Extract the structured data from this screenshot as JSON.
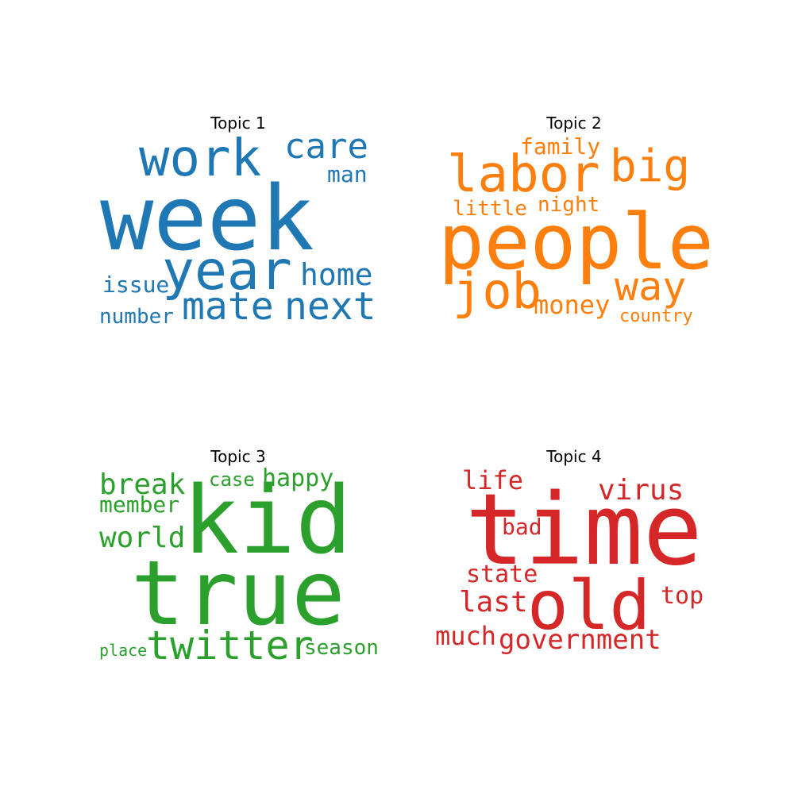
{
  "colors": {
    "topic1": "#1f77b4",
    "topic2": "#ff7f0e",
    "topic3": "#2ca02c",
    "topic4": "#d62728"
  },
  "topics": [
    {
      "title": "Topic 1",
      "words": [
        "week",
        "work",
        "care",
        "man",
        "year",
        "home",
        "issue",
        "mate",
        "next",
        "number"
      ]
    },
    {
      "title": "Topic 2",
      "words": [
        "family",
        "labor",
        "big",
        "little",
        "night",
        "people",
        "job",
        "way",
        "money",
        "country"
      ]
    },
    {
      "title": "Topic 3",
      "words": [
        "break",
        "case",
        "happy",
        "member",
        "kid",
        "world",
        "true",
        "place",
        "twitter",
        "season"
      ]
    },
    {
      "title": "Topic 4",
      "words": [
        "life",
        "virus",
        "bad",
        "time",
        "state",
        "top",
        "last",
        "old",
        "much",
        "government"
      ]
    }
  ]
}
